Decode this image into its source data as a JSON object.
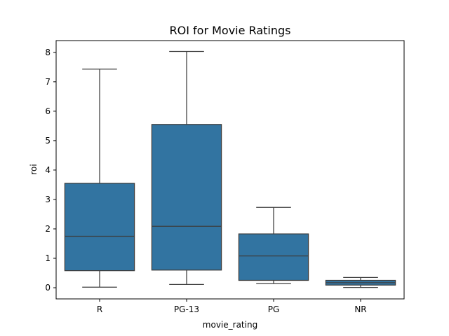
{
  "chart_data": {
    "type": "box",
    "title": "ROI for Movie Ratings",
    "xlabel": "movie_rating",
    "ylabel": "roi",
    "ylim": [
      -0.38,
      8.4
    ],
    "yticks": [
      0,
      1,
      2,
      3,
      4,
      5,
      6,
      7,
      8
    ],
    "grid": false,
    "box_color": "#3274a1",
    "line_color": "#3d3d3d",
    "categories": [
      "R",
      "PG-13",
      "PG",
      "NR"
    ],
    "boxes": [
      {
        "category": "R",
        "whisker_low": 0.02,
        "q1": 0.58,
        "median": 1.75,
        "q3": 3.55,
        "whisker_high": 7.43
      },
      {
        "category": "PG-13",
        "whisker_low": 0.11,
        "q1": 0.6,
        "median": 2.09,
        "q3": 5.55,
        "whisker_high": 8.03
      },
      {
        "category": "PG",
        "whisker_low": 0.14,
        "q1": 0.25,
        "median": 1.08,
        "q3": 1.83,
        "whisker_high": 2.73
      },
      {
        "category": "NR",
        "whisker_low": 0.01,
        "q1": 0.09,
        "median": 0.17,
        "q3": 0.25,
        "whisker_high": 0.35
      }
    ]
  }
}
